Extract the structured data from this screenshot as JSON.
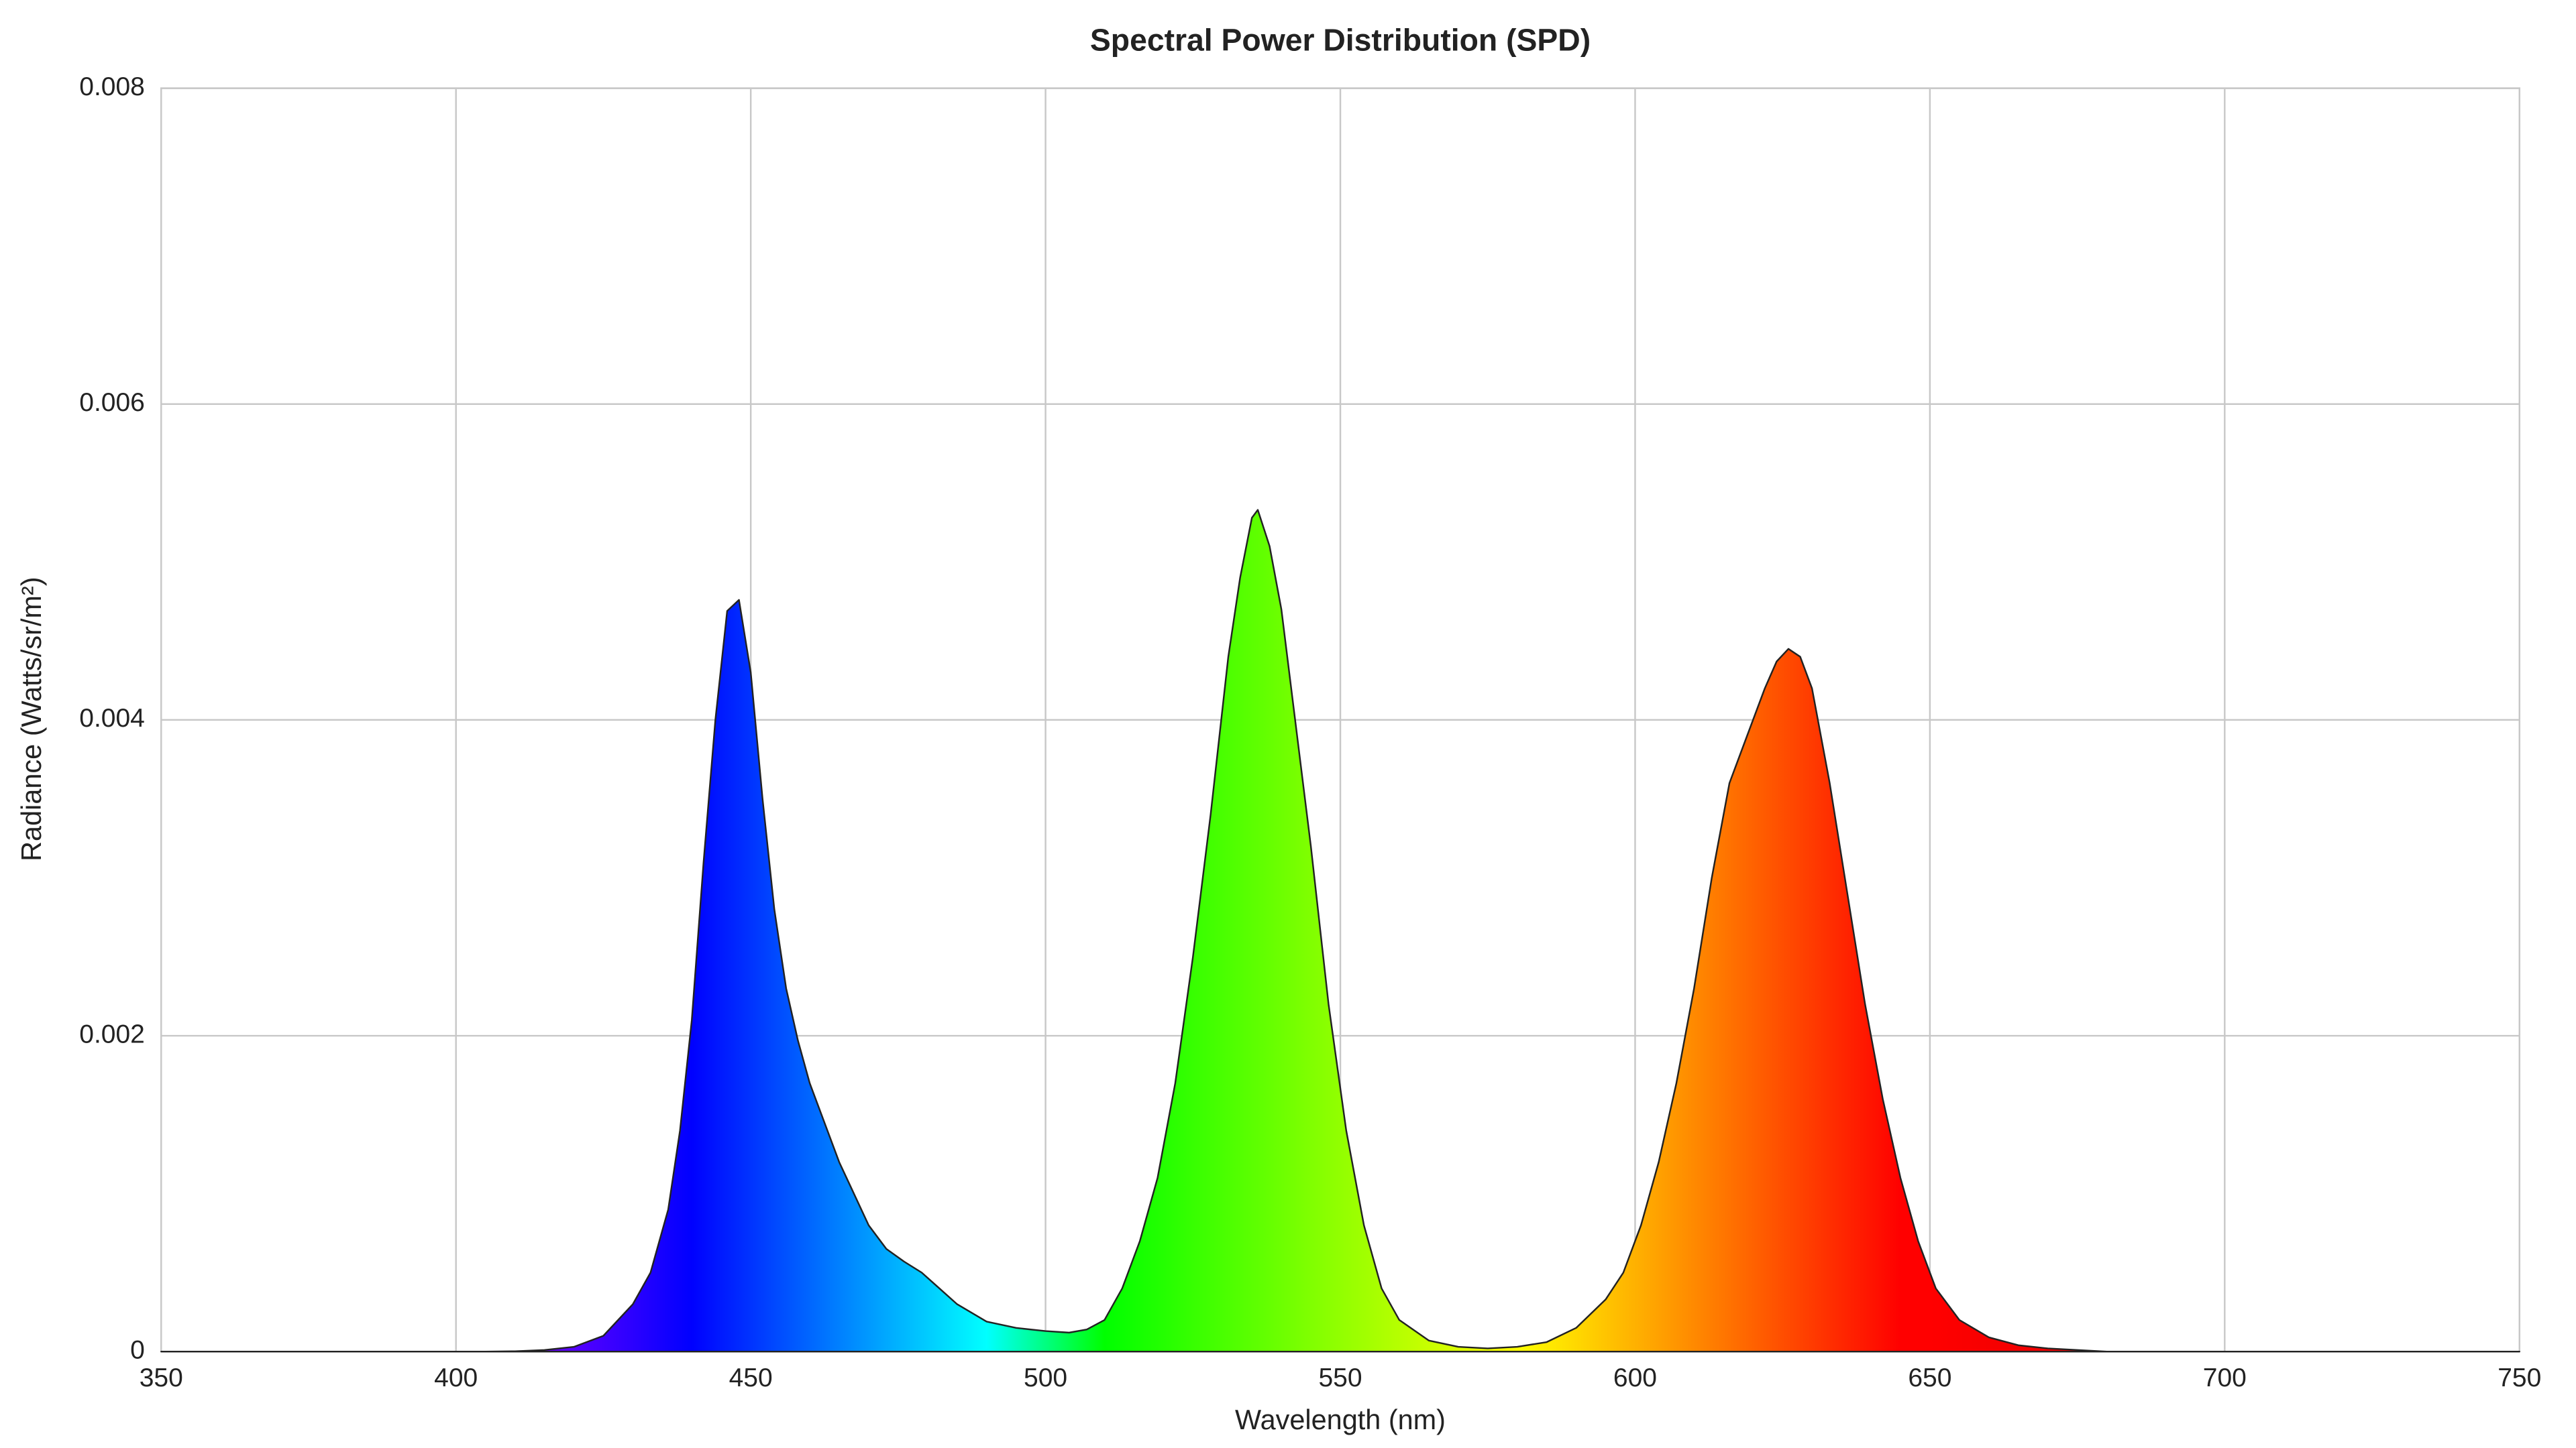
{
  "chart_data": {
    "type": "area",
    "title": "Spectral Power Distribution (SPD)",
    "x_label": "Wavelength (nm)",
    "y_label": "Radiance (Watts/sr/m²)",
    "x": [
      350,
      405,
      410,
      415,
      420,
      425,
      430,
      433,
      436,
      438,
      440,
      442,
      444,
      446,
      448,
      450,
      452,
      454,
      456,
      458,
      460,
      465,
      470,
      473,
      476,
      479,
      482,
      485,
      490,
      495,
      500,
      504,
      507,
      510,
      513,
      516,
      519,
      522,
      525,
      528,
      531,
      533,
      535,
      536,
      538,
      540,
      542,
      545,
      548,
      551,
      554,
      557,
      560,
      565,
      570,
      575,
      580,
      585,
      590,
      595,
      598,
      601,
      604,
      607,
      610,
      613,
      616,
      619,
      622,
      624,
      626,
      628,
      630,
      633,
      636,
      639,
      642,
      645,
      648,
      651,
      655,
      660,
      665,
      670,
      680,
      750
    ],
    "values": [
      0,
      0,
      2e-06,
      1e-05,
      3e-05,
      0.0001,
      0.0003,
      0.0005,
      0.0009,
      0.0014,
      0.0021,
      0.0031,
      0.004,
      0.00469,
      0.00476,
      0.0043,
      0.0035,
      0.0028,
      0.0023,
      0.00197,
      0.0017,
      0.0012,
      0.0008,
      0.00065,
      0.00057,
      0.0005,
      0.0004,
      0.0003,
      0.00019,
      0.00015,
      0.00013,
      0.00012,
      0.00014,
      0.0002,
      0.0004,
      0.0007,
      0.0011,
      0.0017,
      0.0025,
      0.0034,
      0.0044,
      0.0049,
      0.00528,
      0.00533,
      0.0051,
      0.0047,
      0.0041,
      0.0032,
      0.0022,
      0.0014,
      0.0008,
      0.0004,
      0.0002,
      7e-05,
      3e-05,
      2e-05,
      3e-05,
      6e-05,
      0.00015,
      0.00033,
      0.0005,
      0.0008,
      0.0012,
      0.0017,
      0.0023,
      0.003,
      0.0036,
      0.0039,
      0.0042,
      0.00437,
      0.00445,
      0.0044,
      0.0042,
      0.0036,
      0.0029,
      0.0022,
      0.0016,
      0.0011,
      0.0007,
      0.0004,
      0.0002,
      9e-05,
      4e-05,
      2e-05,
      0,
      0
    ],
    "xlim": [
      350,
      750
    ],
    "xticks": [
      350,
      400,
      450,
      500,
      550,
      600,
      650,
      700,
      750
    ],
    "ylim": [
      0,
      0.008
    ],
    "yticks": [
      0,
      0.002,
      0.004,
      0.006,
      0.008
    ],
    "grid": true,
    "fill": "spectrum",
    "color": "#222222"
  }
}
